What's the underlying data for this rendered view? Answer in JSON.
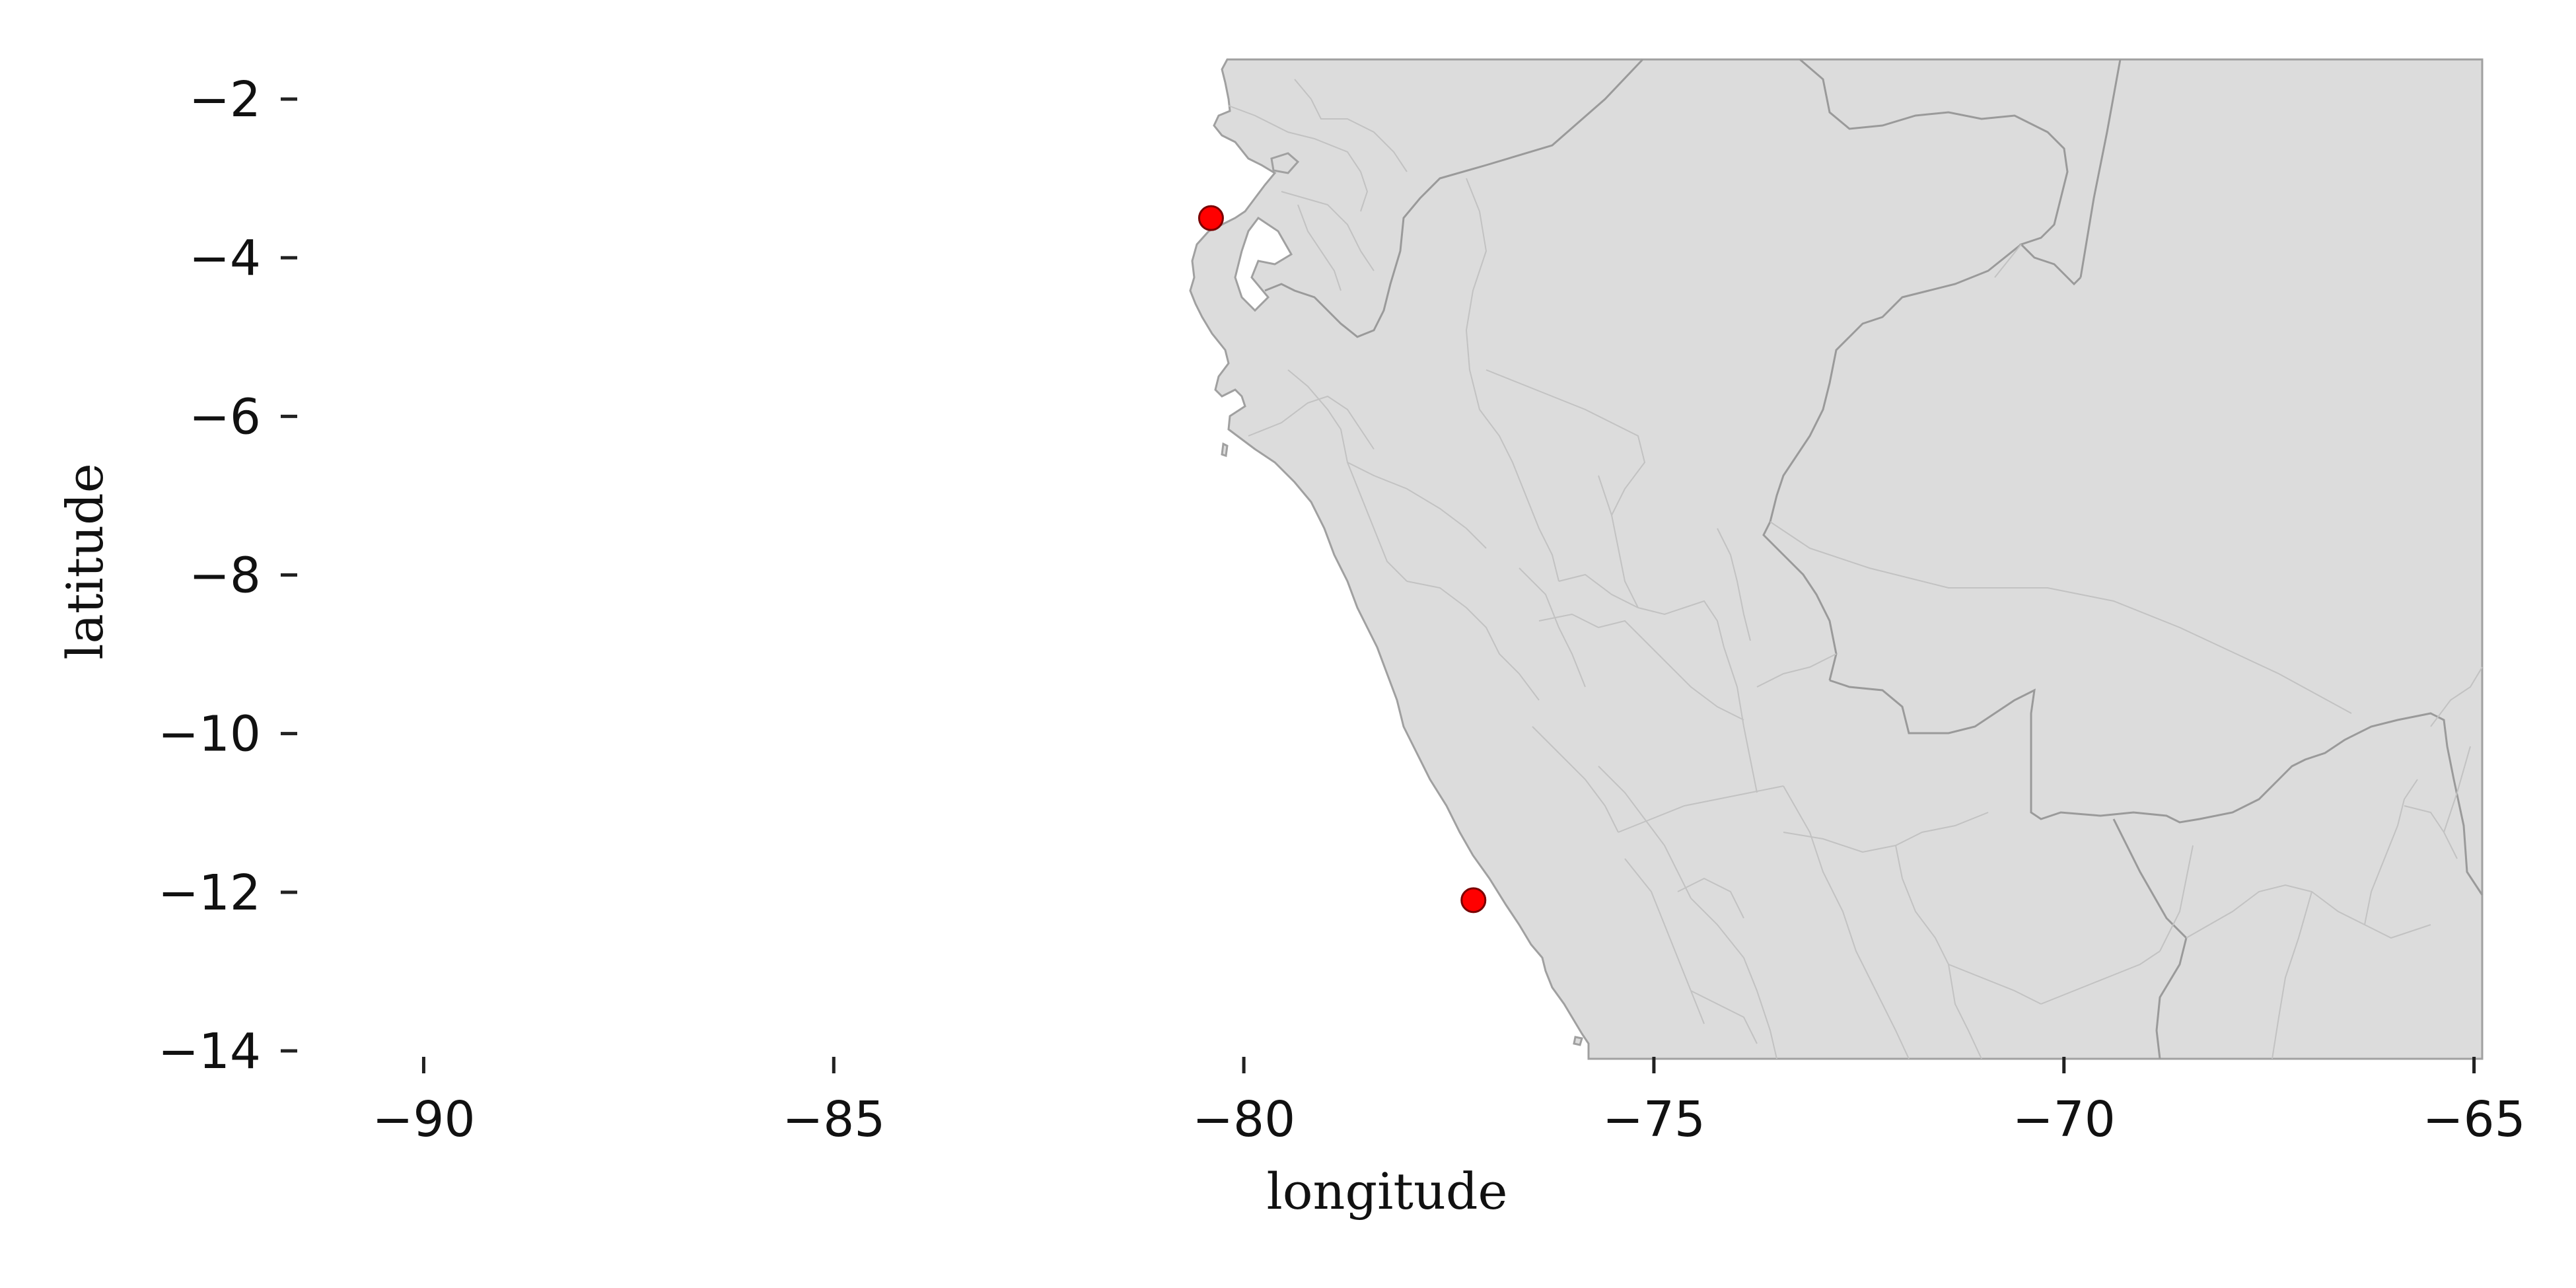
{
  "chart_data": {
    "type": "scatter",
    "title": "",
    "xlabel": "longitude",
    "ylabel": "latitude",
    "xlim": [
      -92.75,
      -64.9
    ],
    "ylim": [
      -14.1,
      -1.5
    ],
    "xticks": [
      -90,
      -85,
      -80,
      -75,
      -70,
      -65
    ],
    "yticks": [
      -2,
      -4,
      -6,
      -8,
      -10,
      -12,
      -14
    ],
    "xtick_labels": [
      "−90",
      "−85",
      "−80",
      "−75",
      "−70",
      "−65"
    ],
    "ytick_labels": [
      "−2",
      "−4",
      "−6",
      "−8",
      "−10",
      "−12",
      "−14"
    ],
    "grid": false,
    "legend": "none",
    "basemap": "countries and administrative regions of the Andean / western Amazon area",
    "colors": {
      "land": "#dcdcdc",
      "country_border": "#9a9a9a",
      "region_border": "#bdbdbd",
      "marker_fill": "#ff0000",
      "marker_edge": "#7a0000"
    },
    "points": [
      {
        "x": -80.4,
        "y": -3.5
      },
      {
        "x": -77.2,
        "y": -12.1
      }
    ]
  }
}
